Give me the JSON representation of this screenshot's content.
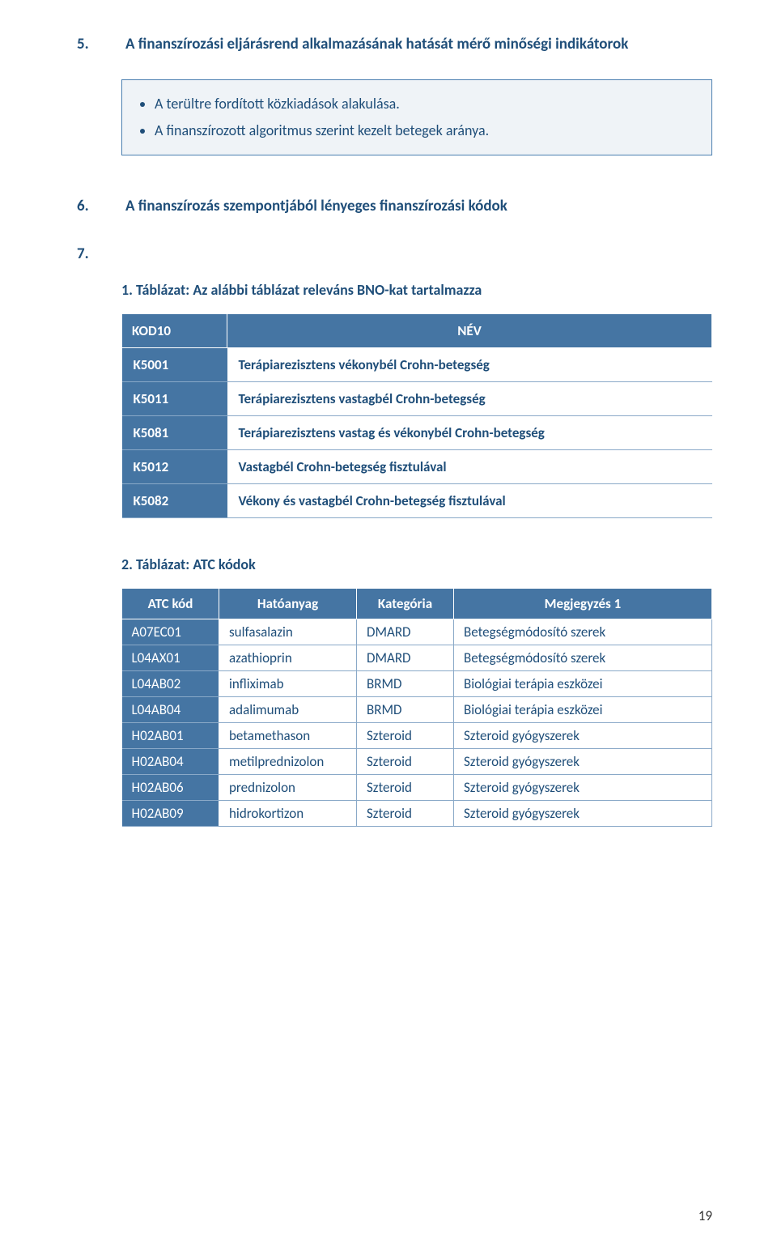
{
  "section5": {
    "num": "5.",
    "title": "A finanszírozási eljárásrend alkalmazásának hatását mérő minőségi indikátorok"
  },
  "bullets": [
    "A terültre fordított közkiadások alakulása.",
    "A finanszírozott algoritmus szerint kezelt betegek aránya."
  ],
  "section6": {
    "num": "6.",
    "title": "A finanszírozás szempontjából lényeges finanszírozási kódok"
  },
  "section7": {
    "num": "7."
  },
  "table1": {
    "caption": "1. Táblázat: Az alábbi táblázat releváns BNO-kat tartalmazza",
    "headers": [
      "KOD10",
      "NÉV"
    ],
    "rows": [
      [
        "K5001",
        "Terápiarezisztens vékonybél Crohn-betegség"
      ],
      [
        "K5011",
        "Terápiarezisztens vastagbél Crohn-betegség"
      ],
      [
        "K5081",
        "Terápiarezisztens vastag és vékonybél Crohn-betegség"
      ],
      [
        "K5012",
        "Vastagbél Crohn-betegség fisztulával"
      ],
      [
        "K5082",
        "Vékony és vastagbél Crohn-betegség fisztulával"
      ]
    ]
  },
  "table2": {
    "caption": "2. Táblázat: ATC kódok",
    "headers": [
      "ATC kód",
      "Hatóanyag",
      "Kategória",
      "Megjegyzés 1"
    ],
    "rows": [
      [
        "A07EC01",
        "sulfasalazin",
        "DMARD",
        "Betegségmódosító szerek"
      ],
      [
        "L04AX01",
        "azathioprin",
        "DMARD",
        "Betegségmódosító szerek"
      ],
      [
        "L04AB02",
        "infliximab",
        "BRMD",
        "Biológiai terápia eszközei"
      ],
      [
        "L04AB04",
        "adalimumab",
        "BRMD",
        "Biológiai terápia eszközei"
      ],
      [
        "H02AB01",
        "betamethason",
        "Szteroid",
        "Szteroid gyógyszerek"
      ],
      [
        "H02AB04",
        "metilprednizolon",
        "Szteroid",
        "Szteroid gyógyszerek"
      ],
      [
        "H02AB06",
        "prednizolon",
        "Szteroid",
        "Szteroid gyógyszerek"
      ],
      [
        "H02AB09",
        "hidrokortizon",
        "Szteroid",
        "Szteroid gyógyszerek"
      ]
    ]
  },
  "page_number": "19"
}
